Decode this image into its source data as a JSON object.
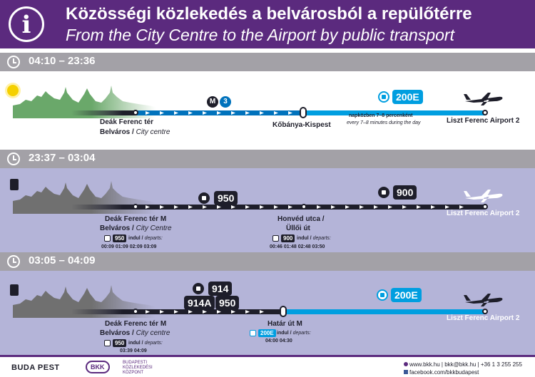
{
  "header": {
    "icon": "info-icon",
    "info_glyph": "i",
    "title_hu": "Közösségi közlekedés a belvárosból a repülőtérre",
    "title_en": "From the City Centre to the Airport by public transport"
  },
  "colors": {
    "brand_purple": "#5b2a7e",
    "bar_grey": "#a3a1a7",
    "night_panel": "#b4b4d8",
    "airport_blue": "#009ee0",
    "metro_blue": "#0072bc",
    "skyline_green": "#6aa86a"
  },
  "sections": [
    {
      "time": "04:10 – 23:36",
      "icon": "sun-icon",
      "metro_label": "M",
      "metro_line": "3",
      "stop1_name": "Deák Ferenc tér",
      "stop1_district": "Belváros /",
      "stop1_district_en": "City centre",
      "transfer_stop": "Kőbánya-Kispest",
      "bus_line": "200E",
      "frequency_hu": "napközben 7–8 percenként",
      "frequency_en": "every 7–8 minutes during the day",
      "destination": "Liszt Ferenc Airport 2"
    },
    {
      "time": "23:37 – 03:04",
      "icon": "moon-icon",
      "bus_line_1": "950",
      "bus_line_2": "900",
      "stop1_name": "Deák Ferenc tér M",
      "stop1_district": "Belváros /",
      "stop1_district_en": "City Centre",
      "stop1_line": "950",
      "stop1_departs_hu": "indul /",
      "stop1_departs_en": "departs:",
      "stop1_times": "00:09  01:09  02:09  03:09",
      "transfer_stop_1": "Honvéd utca /",
      "transfer_stop_2": "Üllői út",
      "transfer_line": "900",
      "transfer_departs_hu": "indul /",
      "transfer_departs_en": "departs:",
      "transfer_times": "00:46  01:48  02:48  03:50",
      "destination": "Liszt Ferenc Airport 2"
    },
    {
      "time": "03:05 – 04:09",
      "icon": "moon-icon",
      "bus_line_a": "914",
      "bus_line_b": "914A",
      "bus_line_c": "950",
      "bus_line_d": "200E",
      "stop1_name": "Deák Ferenc tér M",
      "stop1_district": "Belváros /",
      "stop1_district_en": "City centre",
      "stop1_line": "950",
      "stop1_departs_hu": "indul /",
      "stop1_departs_en": "departs:",
      "stop1_times": "03:39  04:09",
      "transfer_stop": "Határ út M",
      "transfer_line": "200E",
      "transfer_departs_hu": "indul /",
      "transfer_departs_en": "departs:",
      "transfer_times": "04:00  04:30",
      "destination": "Liszt Ferenc Airport 2"
    }
  ],
  "footer": {
    "logo_budapest": "BUDA PEST",
    "logo_bkk": "BKK",
    "logo_bkk_sub_1": "BUDAPESTI",
    "logo_bkk_sub_2": "KÖZLEKEDÉSI",
    "logo_bkk_sub_3": "KÖZPONT",
    "contact_line": "www.bkk.hu | bkk@bkk.hu | +36 1 3 255 255",
    "facebook": "facebook.com/bkkbudapest"
  }
}
